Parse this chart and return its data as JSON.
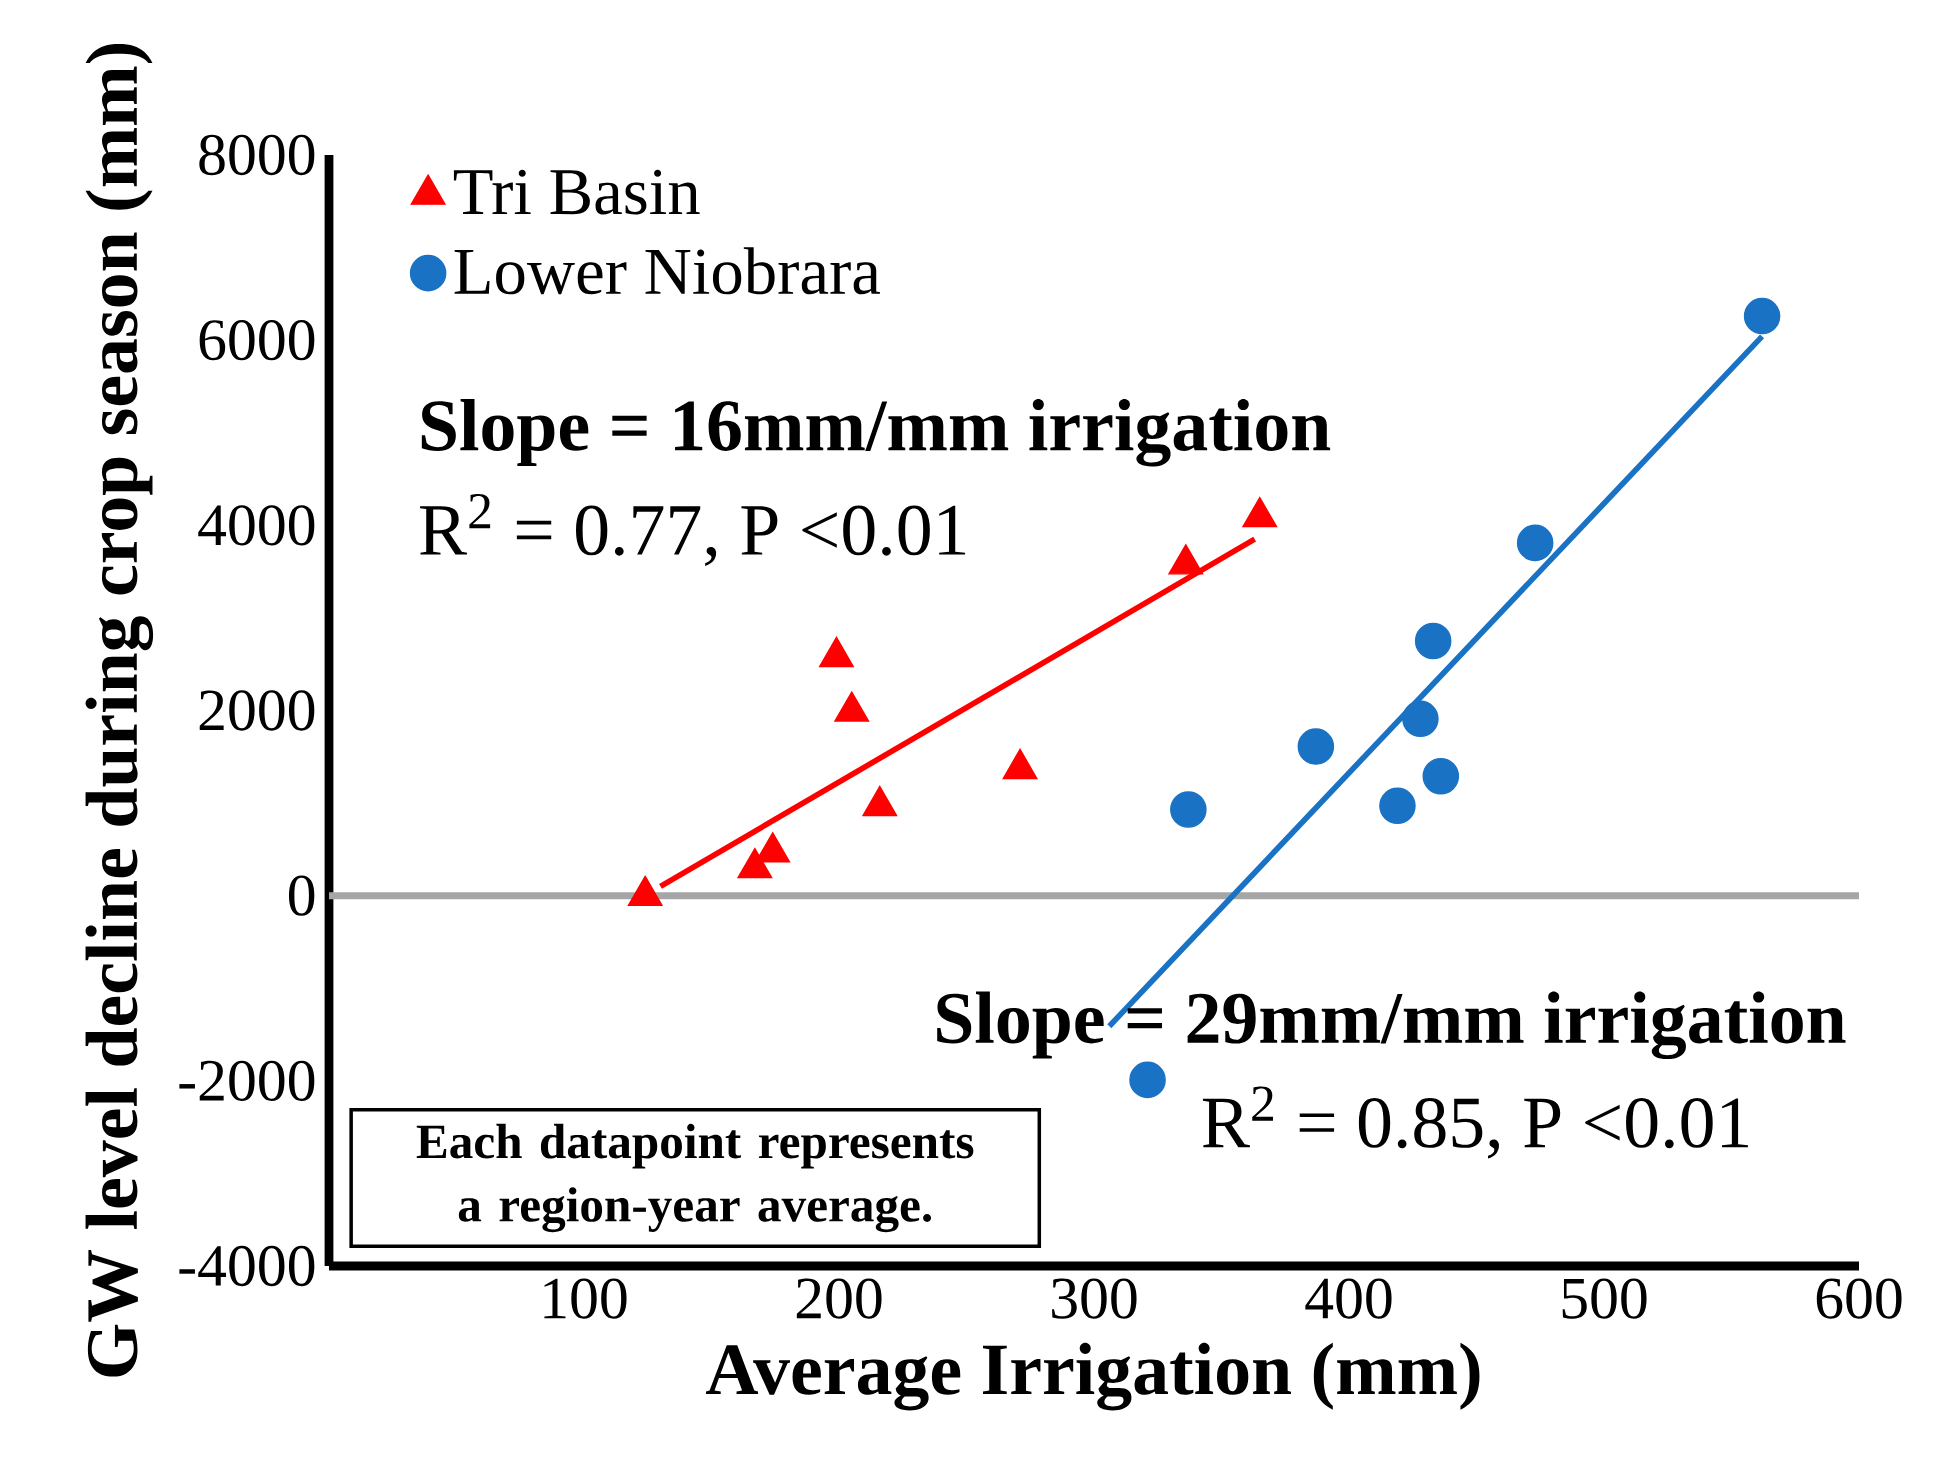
{
  "chart_data": {
    "type": "scatter",
    "xlabel": "Average  Irrigation (mm)",
    "ylabel": "GW level decline during crop season  (mm)",
    "xlim": [
      0,
      600
    ],
    "xticks": [
      100,
      200,
      300,
      400,
      500,
      600
    ],
    "ylim": [
      -4000,
      8000
    ],
    "yticks": [
      -4000,
      -2000,
      0,
      2000,
      4000,
      6000,
      8000
    ],
    "legend": "top left",
    "grid": false,
    "ref_lines": [
      {
        "axis": "y",
        "value": 0,
        "color": "#a6a6a6"
      }
    ],
    "annotations": [
      "**Slope = 16mm/mm irrigation**",
      "R$^{2}$ = 0.77, P <0.01",
      "**Slope = 29mm/mm irrigation**",
      "R$^{2}$ = 0.85, P <0.01",
      "**Each datapoint represents a region-year average.**"
    ],
    "series": [
      {
        "name": "Tri Basin",
        "marker": "triangle",
        "color": "#ff0000",
        "x": [
          124,
          167,
          174,
          199,
          205,
          216,
          271,
          336,
          365
        ],
        "values": [
          0,
          300,
          470,
          2580,
          1990,
          970,
          1370,
          3580,
          4090
        ]
      },
      {
        "name": "Lower Niobrara",
        "marker": "circle",
        "color": "#1a72c4",
        "x": [
          321,
          337,
          387,
          419,
          428,
          433,
          436,
          473,
          562
        ],
        "values": [
          -1990,
          930,
          1610,
          970,
          1910,
          2750,
          1290,
          3810,
          6260
        ]
      },
      {
        "type": "line",
        "color": "#ff0000",
        "x": [
          130,
          363
        ],
        "values": [
          100,
          3850
        ]
      },
      {
        "type": "line",
        "color": "#1a72c4",
        "x": [
          306,
          562
        ],
        "values": [
          -1410,
          6040
        ]
      }
    ]
  }
}
